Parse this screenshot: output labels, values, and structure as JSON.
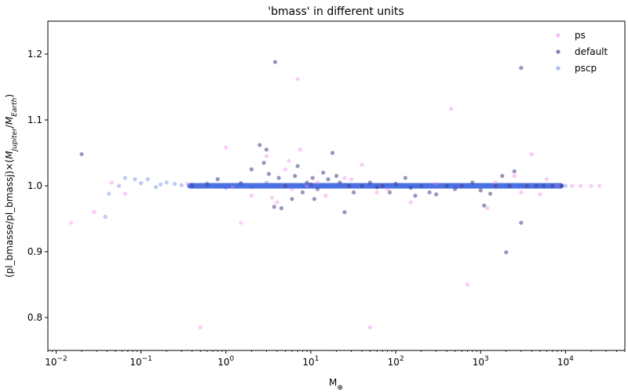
{
  "chart_data": {
    "type": "scatter",
    "title": "'bmass' in different units",
    "xlabel_base": "M",
    "xlabel_sub": "⊕",
    "ylabel_main": "(pl_bmasse/pl_bmassj)×(",
    "ylabel_m1": "M",
    "ylabel_s1": "Jupiter",
    "ylabel_slash": "/",
    "ylabel_m2": "M",
    "ylabel_s2": "Earth",
    "ylabel_close": ")",
    "xscale": "log",
    "xlim": [
      0.008,
      50000
    ],
    "ylim": [
      0.75,
      1.25
    ],
    "yticks": [
      "0.8",
      "0.9",
      "1.0",
      "1.1",
      "1.2"
    ],
    "xticks": [
      {
        "base": "10",
        "exp": "−2"
      },
      {
        "base": "10",
        "exp": "−1"
      },
      {
        "base": "10",
        "exp": "0"
      },
      {
        "base": "10",
        "exp": "1"
      },
      {
        "base": "10",
        "exp": "2"
      },
      {
        "base": "10",
        "exp": "3"
      },
      {
        "base": "10",
        "exp": "4"
      }
    ],
    "legend_position": "top-right",
    "series": [
      {
        "name": "ps",
        "color": "#ee82ee",
        "opacity": 0.4,
        "points": [
          [
            0.015,
            0.944
          ],
          [
            0.028,
            0.96
          ],
          [
            0.045,
            1.005
          ],
          [
            0.065,
            0.988
          ],
          [
            0.5,
            0.785
          ],
          [
            1.0,
            1.058
          ],
          [
            1.5,
            0.944
          ],
          [
            3.0,
            1.045
          ],
          [
            4.0,
            0.975
          ],
          [
            5.0,
            1.025
          ],
          [
            7.0,
            1.162
          ],
          [
            7.5,
            1.055
          ],
          [
            5.5,
            1.038
          ],
          [
            9.0,
            1.0
          ],
          [
            12.0,
            1.005
          ],
          [
            25.0,
            1.012
          ],
          [
            50.0,
            0.785
          ],
          [
            40.0,
            1.032
          ],
          [
            60.0,
            0.99
          ],
          [
            150.0,
            0.975
          ],
          [
            450.0,
            1.117
          ],
          [
            700.0,
            0.85
          ],
          [
            1200.0,
            0.966
          ],
          [
            1500.0,
            1.005
          ],
          [
            2500.0,
            1.015
          ],
          [
            4000.0,
            1.048
          ],
          [
            5000.0,
            0.987
          ],
          [
            8000.0,
            1.0
          ],
          [
            12000.0,
            1.0
          ],
          [
            15000.0,
            1.0
          ],
          [
            20000.0,
            1.0
          ],
          [
            25000.0,
            1.0
          ],
          [
            2.0,
            0.985
          ],
          [
            3.5,
            0.982
          ],
          [
            6.0,
            0.995
          ],
          [
            15.0,
            0.985
          ],
          [
            30.0,
            1.01
          ],
          [
            80.0,
            0.995
          ],
          [
            300.0,
            1.003
          ],
          [
            3000.0,
            0.99
          ],
          [
            6000.0,
            1.01
          ],
          [
            1.2,
            0.998
          ],
          [
            0.35,
            1.003
          ]
        ]
      },
      {
        "name": "default",
        "color": "#483d8b",
        "opacity": 0.55,
        "points": [
          [
            0.02,
            1.048
          ],
          [
            3.8,
            1.188
          ],
          [
            3000.0,
            1.179
          ],
          [
            2.5,
            1.062
          ],
          [
            3.0,
            1.055
          ],
          [
            18.0,
            1.05
          ],
          [
            2000.0,
            0.899
          ],
          [
            3000.0,
            0.944
          ],
          [
            0.8,
            1.01
          ],
          [
            1.5,
            1.004
          ],
          [
            2.0,
            1.025
          ],
          [
            2.8,
            1.035
          ],
          [
            3.2,
            1.018
          ],
          [
            3.7,
            0.968
          ],
          [
            4.2,
            1.012
          ],
          [
            5.0,
            1.0
          ],
          [
            6.0,
            0.98
          ],
          [
            6.5,
            1.015
          ],
          [
            7.0,
            1.03
          ],
          [
            8.0,
            0.99
          ],
          [
            9.0,
            1.005
          ],
          [
            10.0,
            1.002
          ],
          [
            12.0,
            0.995
          ],
          [
            14.0,
            1.02
          ],
          [
            16.0,
            1.01
          ],
          [
            20.0,
            1.015
          ],
          [
            22.0,
            1.005
          ],
          [
            25.0,
            0.96
          ],
          [
            28.0,
            1.0
          ],
          [
            32.0,
            0.99
          ],
          [
            40.0,
            1.0
          ],
          [
            50.0,
            1.005
          ],
          [
            60.0,
            0.998
          ],
          [
            70.0,
            1.0
          ],
          [
            85.0,
            0.99
          ],
          [
            100.0,
            1.003
          ],
          [
            130.0,
            1.012
          ],
          [
            150.0,
            0.997
          ],
          [
            170.0,
            0.985
          ],
          [
            200.0,
            1.0
          ],
          [
            250.0,
            0.99
          ],
          [
            300.0,
            0.987
          ],
          [
            400.0,
            1.0
          ],
          [
            500.0,
            0.995
          ],
          [
            600.0,
            1.0
          ],
          [
            800.0,
            1.005
          ],
          [
            1000.0,
            0.993
          ],
          [
            1100.0,
            0.97
          ],
          [
            1300.0,
            0.988
          ],
          [
            1500.0,
            1.0
          ],
          [
            1800.0,
            1.015
          ],
          [
            2200.0,
            1.0
          ],
          [
            2500.0,
            1.022
          ],
          [
            3500.0,
            1.0
          ],
          [
            4500.0,
            1.0
          ],
          [
            5500.0,
            1.0
          ],
          [
            7000.0,
            1.0
          ],
          [
            9000.0,
            1.0
          ],
          [
            10.5,
            1.012
          ],
          [
            4.5,
            0.966
          ],
          [
            11.0,
            0.98
          ],
          [
            0.4,
            1.0
          ],
          [
            0.6,
            1.002
          ]
        ]
      },
      {
        "name": "pscp",
        "color": "#4169e1",
        "opacity": 0.35,
        "points": [
          [
            0.038,
            0.953
          ],
          [
            0.042,
            0.988
          ],
          [
            0.055,
            1.0
          ],
          [
            0.065,
            1.012
          ],
          [
            0.085,
            1.01
          ],
          [
            0.1,
            1.004
          ],
          [
            0.12,
            1.01
          ],
          [
            0.15,
            0.998
          ],
          [
            0.17,
            1.002
          ],
          [
            0.2,
            1.005
          ],
          [
            0.25,
            1.003
          ],
          [
            0.3,
            1.001
          ],
          [
            0.4,
            1.002
          ],
          [
            0.6,
            1.004
          ],
          [
            0.8,
            1.0
          ],
          [
            1.0,
            0.997
          ],
          [
            1.5,
            1.003
          ],
          [
            2.0,
            0.998
          ],
          [
            3.0,
            1.005
          ],
          [
            4.0,
            1.0
          ],
          [
            6.0,
            0.998
          ],
          [
            8.0,
            1.0
          ],
          [
            10.0,
            1.0
          ],
          [
            15.0,
            0.999
          ],
          [
            20.0,
            1.0
          ],
          [
            30.0,
            1.0
          ],
          [
            50.0,
            1.0
          ],
          [
            80.0,
            1.0
          ],
          [
            120.0,
            1.0
          ],
          [
            200.0,
            1.0
          ],
          [
            300.0,
            1.0
          ],
          [
            500.0,
            1.0
          ],
          [
            800.0,
            1.0
          ],
          [
            1200.0,
            1.0
          ],
          [
            2000.0,
            1.0
          ],
          [
            3000.0,
            1.0
          ],
          [
            5000.0,
            1.0
          ],
          [
            8000.0,
            1.0
          ],
          [
            10000.0,
            1.0
          ]
        ]
      }
    ],
    "band": {
      "color": "#4169e1",
      "x_range": [
        0.35,
        9500
      ],
      "y": 1.0
    }
  }
}
